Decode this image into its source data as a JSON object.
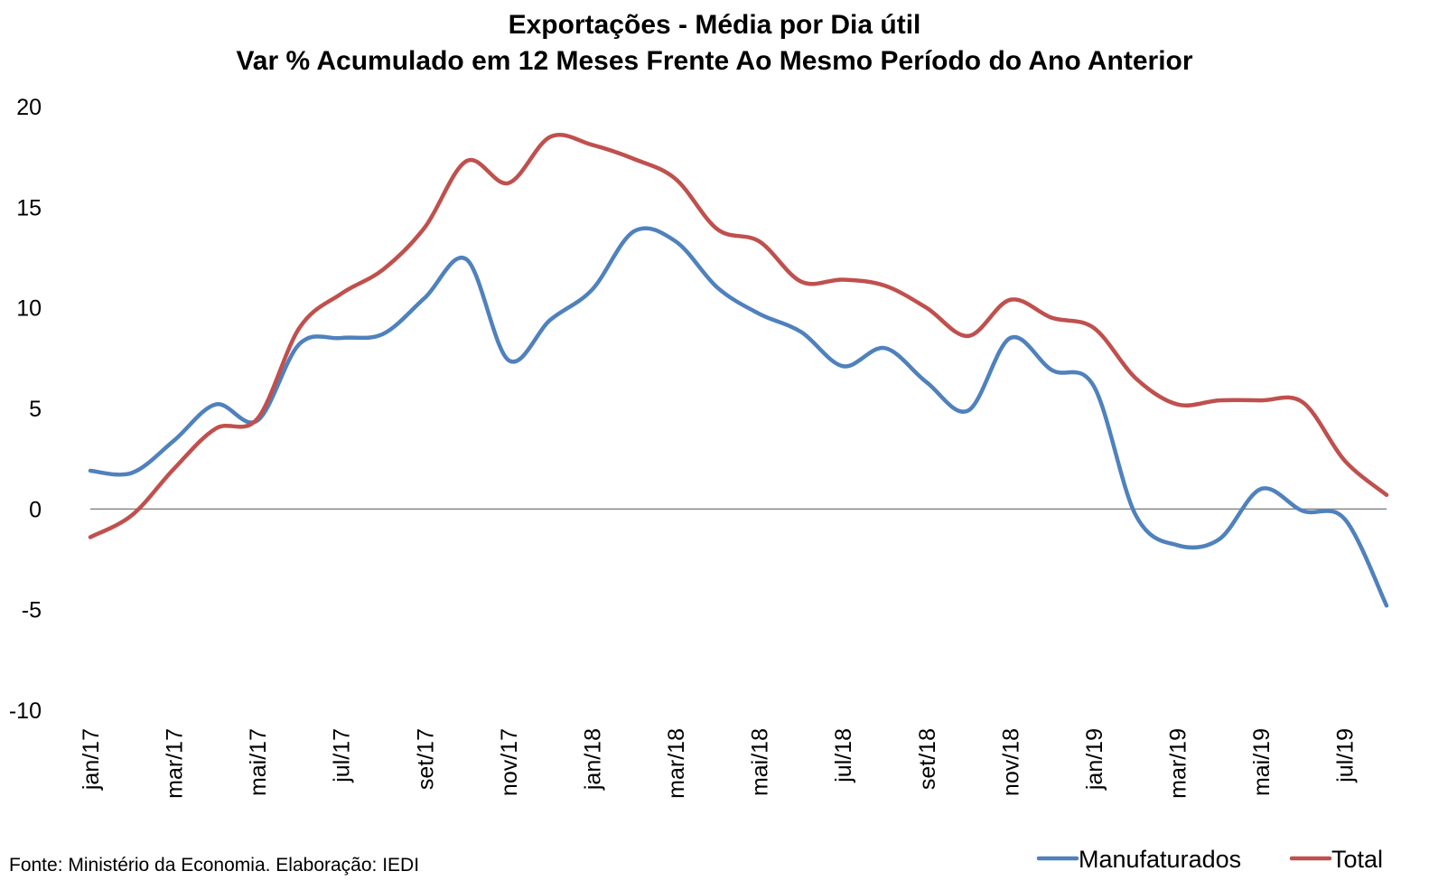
{
  "chart_data": {
    "type": "line",
    "title": "Exportações - Média por Dia útil",
    "subtitle": "Var % Acumulado em 12 Meses Frente Ao Mesmo Período do Ano Anterior",
    "xlabel": "",
    "ylabel": "",
    "ylim": [
      -10,
      20
    ],
    "yticks": [
      -10,
      -5,
      0,
      5,
      10,
      15,
      20
    ],
    "grid": false,
    "legend_position": "bottom-right",
    "x": [
      "jan/17",
      "fev/17",
      "mar/17",
      "abr/17",
      "mai/17",
      "jun/17",
      "jul/17",
      "ago/17",
      "set/17",
      "out/17",
      "nov/17",
      "dez/17",
      "jan/18",
      "fev/18",
      "mar/18",
      "abr/18",
      "mai/18",
      "jun/18",
      "jul/18",
      "ago/18",
      "set/18",
      "out/18",
      "nov/18",
      "dez/18",
      "jan/19",
      "fev/19",
      "mar/19",
      "abr/19",
      "mai/19",
      "jun/19",
      "jul/19",
      "ago/19"
    ],
    "x_tick_labels": [
      "jan/17",
      "mar/17",
      "mai/17",
      "jul/17",
      "set/17",
      "nov/17",
      "jan/18",
      "mar/18",
      "mai/18",
      "jul/18",
      "set/18",
      "nov/18",
      "jan/19",
      "mar/19",
      "mai/19",
      "jul/19"
    ],
    "series": [
      {
        "name": "Manufaturados",
        "color": "#4f81bd",
        "values": [
          1.9,
          1.8,
          3.4,
          5.2,
          4.4,
          8.2,
          8.5,
          8.7,
          10.5,
          12.4,
          7.4,
          9.4,
          10.9,
          13.8,
          13.3,
          11.0,
          9.7,
          8.8,
          7.1,
          8.0,
          6.3,
          4.9,
          8.5,
          6.9,
          6.1,
          -0.3,
          -1.8,
          -1.5,
          1.0,
          -0.1,
          -0.5,
          -4.8
        ]
      },
      {
        "name": "Total",
        "color": "#c0504d",
        "values": [
          -1.4,
          -0.3,
          2.0,
          4.0,
          4.5,
          9.0,
          10.7,
          11.9,
          14.0,
          17.3,
          16.2,
          18.5,
          18.1,
          17.4,
          16.4,
          13.9,
          13.3,
          11.3,
          11.4,
          11.1,
          10.0,
          8.6,
          10.4,
          9.5,
          9.0,
          6.5,
          5.2,
          5.4,
          5.4,
          5.3,
          2.4,
          0.7
        ]
      }
    ]
  },
  "source_note": "Fonte: Ministério da Economia. Elaboração: IEDI"
}
